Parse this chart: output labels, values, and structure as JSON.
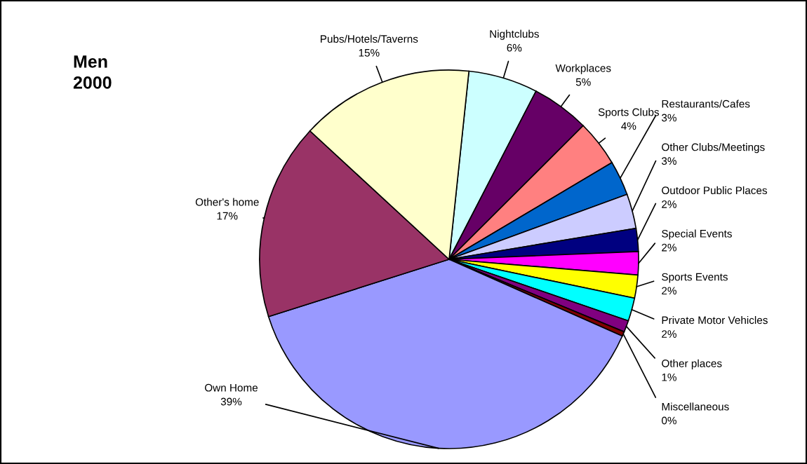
{
  "chart_data": {
    "type": "pie",
    "title": "Men",
    "subtitle": "2000",
    "categories": [
      "Nightclubs",
      "Workplaces",
      "Sports Clubs",
      "Restaurants/Cafes",
      "Other Clubs/Meetings",
      "Outdoor Public Places",
      "Special Events",
      "Sports Events",
      "Private Motor Vehicles",
      "Other places",
      "Miscellaneous",
      "Own Home",
      "Other's home",
      "Pubs/Hotels/Taverns"
    ],
    "values": [
      6,
      5,
      4,
      3,
      3,
      2,
      2,
      2,
      2,
      1,
      0.4,
      39,
      17,
      15
    ],
    "value_labels": [
      "6%",
      "5%",
      "4%",
      "3%",
      "3%",
      "2%",
      "2%",
      "2%",
      "2%",
      "1%",
      "0%",
      "39%",
      "17%",
      "15%"
    ],
    "colors": [
      "#ccffff",
      "#660066",
      "#ff8080",
      "#0066cc",
      "#ccccff",
      "#000080",
      "#ff00ff",
      "#ffff00",
      "#00ffff",
      "#800080",
      "#800000",
      "#9999ff",
      "#993366",
      "#ffffcc"
    ],
    "legend": false
  }
}
